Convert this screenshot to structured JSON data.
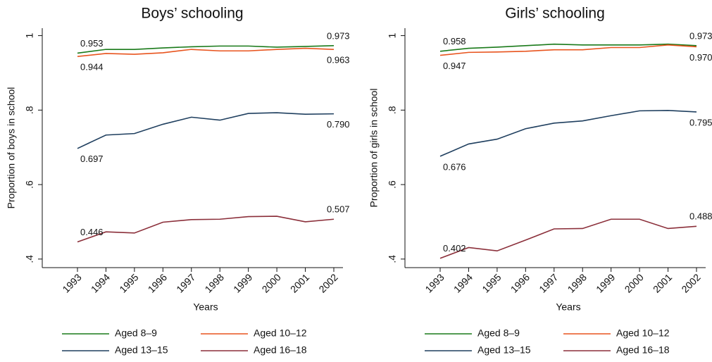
{
  "chart_data": [
    {
      "type": "line",
      "title": "Boys’ schooling",
      "x_label": "Years",
      "y_label": "Proportion of boys in school",
      "categories": [
        "1993",
        "1994",
        "1995",
        "1996",
        "1997",
        "1998",
        "1999",
        "2000",
        "2001",
        "2002"
      ],
      "ylim": [
        0.377,
        1.02
      ],
      "yticks": [
        {
          "value": 0.4,
          "label": ".4"
        },
        {
          "value": 0.6,
          "label": ".6"
        },
        {
          "value": 0.8,
          "label": ".8"
        },
        1
      ],
      "series": [
        {
          "name": "Aged 8–9",
          "color": "#1a7a1a",
          "values": [
            0.953,
            0.963,
            0.963,
            0.967,
            0.97,
            0.972,
            0.972,
            0.969,
            0.971,
            0.973
          ],
          "value_labels": [
            "0.953",
            null,
            null,
            null,
            null,
            null,
            null,
            null,
            null,
            "0.973"
          ]
        },
        {
          "name": "Aged 10–12",
          "color": "#e8541e",
          "values": [
            0.944,
            0.952,
            0.95,
            0.954,
            0.963,
            0.959,
            0.959,
            0.963,
            0.966,
            0.963
          ],
          "value_labels": [
            "0.944",
            null,
            null,
            null,
            null,
            null,
            null,
            null,
            null,
            "0.963"
          ]
        },
        {
          "name": "Aged 13–15",
          "color": "#1f3f5f",
          "values": [
            0.697,
            0.733,
            0.737,
            0.762,
            0.781,
            0.773,
            0.791,
            0.793,
            0.789,
            0.79
          ],
          "value_labels": [
            "0.697",
            null,
            null,
            null,
            null,
            null,
            null,
            null,
            null,
            "0.790"
          ]
        },
        {
          "name": "Aged 16–18",
          "color": "#8b2f3a",
          "values": [
            0.446,
            0.473,
            0.47,
            0.499,
            0.506,
            0.507,
            0.514,
            0.515,
            0.5,
            0.507
          ],
          "value_labels": [
            "0.446",
            null,
            null,
            null,
            null,
            null,
            null,
            null,
            null,
            "0.507"
          ]
        }
      ]
    },
    {
      "type": "line",
      "title": "Girls’ schooling",
      "x_label": "Years",
      "y_label": "Proportion of girls in school",
      "categories": [
        "1993",
        "1994",
        "1995",
        "1996",
        "1997",
        "1998",
        "1999",
        "2000",
        "2001",
        "2002"
      ],
      "ylim": [
        0.377,
        1.02
      ],
      "yticks": [
        {
          "value": 0.4,
          "label": ".4"
        },
        {
          "value": 0.6,
          "label": ".6"
        },
        {
          "value": 0.8,
          "label": ".8"
        },
        1
      ],
      "series": [
        {
          "name": "Aged 8–9",
          "color": "#1a7a1a",
          "values": [
            0.958,
            0.966,
            0.969,
            0.973,
            0.977,
            0.975,
            0.975,
            0.975,
            0.977,
            0.973
          ],
          "value_labels": [
            "0.958",
            null,
            null,
            null,
            null,
            null,
            null,
            null,
            null,
            "0.973"
          ]
        },
        {
          "name": "Aged 10–12",
          "color": "#e8541e",
          "values": [
            0.947,
            0.955,
            0.956,
            0.958,
            0.962,
            0.962,
            0.968,
            0.968,
            0.975,
            0.97
          ],
          "value_labels": [
            "0.947",
            null,
            null,
            null,
            null,
            null,
            null,
            null,
            null,
            "0.970"
          ]
        },
        {
          "name": "Aged 13–15",
          "color": "#1f3f5f",
          "values": [
            0.676,
            0.709,
            0.722,
            0.75,
            0.765,
            0.771,
            0.785,
            0.798,
            0.799,
            0.795
          ],
          "value_labels": [
            "0.676",
            null,
            null,
            null,
            null,
            null,
            null,
            null,
            null,
            "0.795"
          ]
        },
        {
          "name": "Aged 16–18",
          "color": "#8b2f3a",
          "values": [
            0.402,
            0.431,
            0.422,
            0.451,
            0.481,
            0.482,
            0.507,
            0.507,
            0.482,
            0.488
          ],
          "value_labels": [
            "0.402",
            null,
            null,
            null,
            null,
            null,
            null,
            null,
            null,
            "0.488"
          ]
        }
      ]
    }
  ]
}
